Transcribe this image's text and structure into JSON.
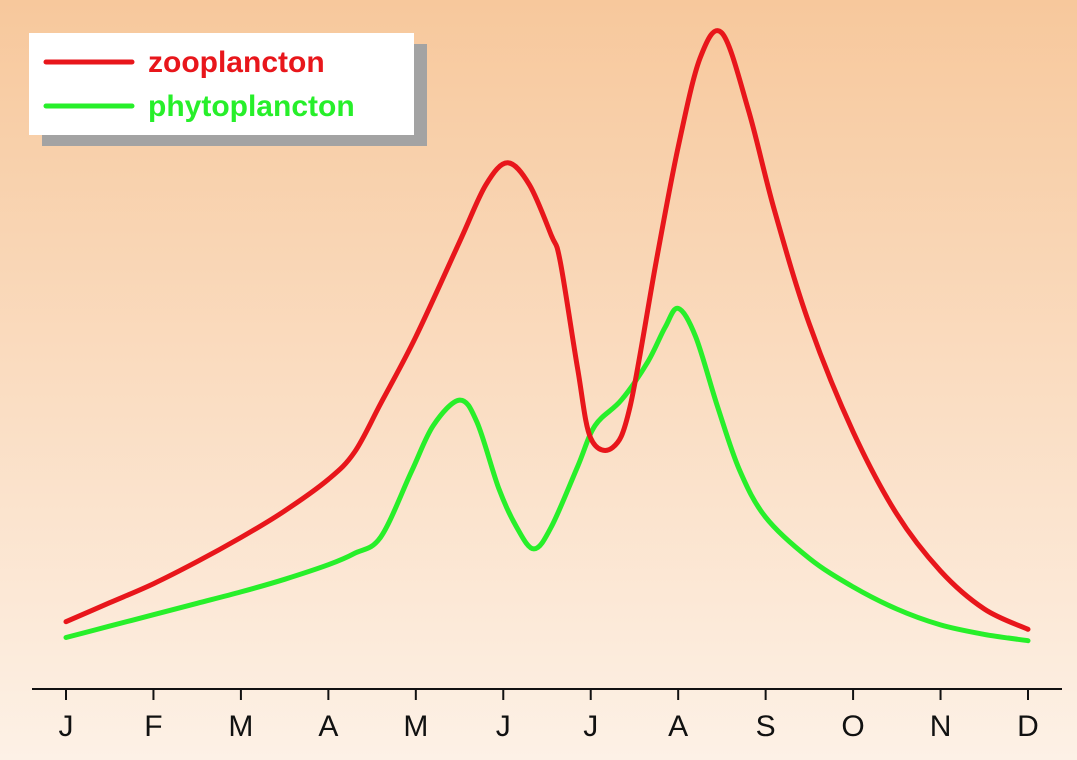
{
  "chart_data": {
    "type": "line",
    "title": "",
    "xlabel": "",
    "ylabel": "",
    "categories": [
      "J",
      "F",
      "M",
      "A",
      "M",
      "J",
      "J",
      "A",
      "S",
      "O",
      "N",
      "D"
    ],
    "xlim": [
      0,
      11
    ],
    "ylim": [
      0,
      100
    ],
    "y_axis_shown": false,
    "grid": false,
    "legend_position": "top-left",
    "background": {
      "top": "#f7c89c",
      "bottom": "#fdf1e6"
    },
    "series": [
      {
        "name": "zooplancton",
        "color": "#e8161b",
        "points": [
          [
            0,
            7
          ],
          [
            0.5,
            10
          ],
          [
            1,
            13
          ],
          [
            1.5,
            16.5
          ],
          [
            2,
            20.3
          ],
          [
            2.5,
            24.5
          ],
          [
            3,
            29.5
          ],
          [
            3.3,
            33.8
          ],
          [
            3.6,
            41.5
          ],
          [
            4,
            52
          ],
          [
            4.5,
            67
          ],
          [
            4.8,
            76
          ],
          [
            5.05,
            79.5
          ],
          [
            5.3,
            76
          ],
          [
            5.55,
            68
          ],
          [
            5.65,
            64
          ],
          [
            5.85,
            47
          ],
          [
            6,
            36
          ],
          [
            6.25,
            34.5
          ],
          [
            6.45,
            41
          ],
          [
            6.75,
            64
          ],
          [
            7,
            82
          ],
          [
            7.25,
            96
          ],
          [
            7.5,
            100
          ],
          [
            7.8,
            88
          ],
          [
            8.1,
            72
          ],
          [
            8.5,
            54
          ],
          [
            9,
            37
          ],
          [
            9.5,
            24
          ],
          [
            10,
            15
          ],
          [
            10.5,
            9
          ],
          [
            11,
            5.8
          ]
        ]
      },
      {
        "name": "phytoplancton",
        "color": "#27ef2a",
        "points": [
          [
            0,
            4.5
          ],
          [
            0.5,
            6.3
          ],
          [
            1,
            8.1
          ],
          [
            1.5,
            9.9
          ],
          [
            2,
            11.7
          ],
          [
            2.5,
            13.7
          ],
          [
            3,
            16
          ],
          [
            3.3,
            17.8
          ],
          [
            3.6,
            20.4
          ],
          [
            3.95,
            30.7
          ],
          [
            4.2,
            38
          ],
          [
            4.5,
            42
          ],
          [
            4.7,
            38.5
          ],
          [
            4.95,
            28
          ],
          [
            5.15,
            22
          ],
          [
            5.35,
            18.5
          ],
          [
            5.55,
            22
          ],
          [
            5.85,
            31.5
          ],
          [
            6.05,
            38
          ],
          [
            6.35,
            42
          ],
          [
            6.65,
            48
          ],
          [
            6.85,
            53.5
          ],
          [
            7,
            56.5
          ],
          [
            7.2,
            52
          ],
          [
            7.45,
            41
          ],
          [
            7.7,
            31
          ],
          [
            8,
            23.5
          ],
          [
            8.5,
            17
          ],
          [
            9,
            12.5
          ],
          [
            9.5,
            9
          ],
          [
            10,
            6.5
          ],
          [
            10.5,
            5
          ],
          [
            11,
            4
          ]
        ]
      }
    ]
  }
}
